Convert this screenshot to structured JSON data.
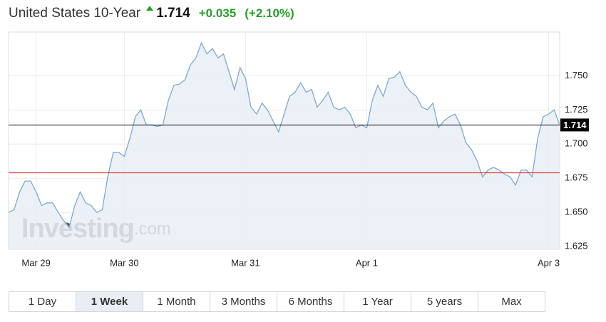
{
  "header": {
    "title": "United States 10-Year",
    "price": 1.714,
    "change": "+0.035",
    "change_pct": "(+2.10%)"
  },
  "chart_data": {
    "type": "area",
    "values": [
      1.65,
      1.652,
      1.665,
      1.673,
      1.673,
      1.665,
      1.655,
      1.657,
      1.657,
      1.65,
      1.644,
      1.639,
      1.655,
      1.665,
      1.657,
      1.655,
      1.65,
      1.652,
      1.676,
      1.694,
      1.694,
      1.691,
      1.704,
      1.72,
      1.725,
      1.714,
      1.714,
      1.713,
      1.714,
      1.732,
      1.743,
      1.744,
      1.747,
      1.758,
      1.763,
      1.774,
      1.766,
      1.77,
      1.763,
      1.766,
      1.753,
      1.74,
      1.756,
      1.748,
      1.727,
      1.722,
      1.73,
      1.725,
      1.717,
      1.709,
      1.722,
      1.735,
      1.738,
      1.745,
      1.738,
      1.74,
      1.727,
      1.732,
      1.738,
      1.727,
      1.725,
      1.727,
      1.722,
      1.712,
      1.714,
      1.712,
      1.732,
      1.743,
      1.735,
      1.748,
      1.749,
      1.753,
      1.743,
      1.738,
      1.735,
      1.727,
      1.725,
      1.73,
      1.712,
      1.717,
      1.72,
      1.722,
      1.714,
      1.701,
      1.696,
      1.688,
      1.676,
      1.681,
      1.683,
      1.681,
      1.678,
      1.676,
      1.67,
      1.681,
      1.681,
      1.676,
      1.704,
      1.72,
      1.722,
      1.725,
      1.714
    ],
    "color": "#7fa8d0",
    "fill": "#e8eef6",
    "xlim": [
      0,
      100
    ],
    "xticks": [
      {
        "value": 5,
        "label": "Mar 29"
      },
      {
        "value": 21,
        "label": "Mar 30"
      },
      {
        "value": 43,
        "label": "Mar 31"
      },
      {
        "value": 65,
        "label": "Apr 1"
      },
      {
        "value": 98,
        "label": "Apr 3"
      }
    ],
    "ylim": [
      1.623,
      1.782
    ],
    "yticks": [
      1.625,
      {
        "value": 1.65,
        "label": "1.650"
      },
      1.675,
      {
        "value": 1.7,
        "label": "1.700"
      },
      1.725,
      {
        "value": 1.75,
        "label": "1.750"
      }
    ],
    "grid": true,
    "reference_lines": [
      {
        "value": 1.714,
        "color": "#000000"
      },
      {
        "value": 1.679,
        "color": "#e02020"
      }
    ],
    "watermark": [
      "Investing",
      ".com"
    ]
  },
  "range_buttons": [
    "1 Day",
    "1 Week",
    "1 Month",
    "3 Months",
    "6 Months",
    "1 Year",
    "5 years",
    "Max"
  ]
}
